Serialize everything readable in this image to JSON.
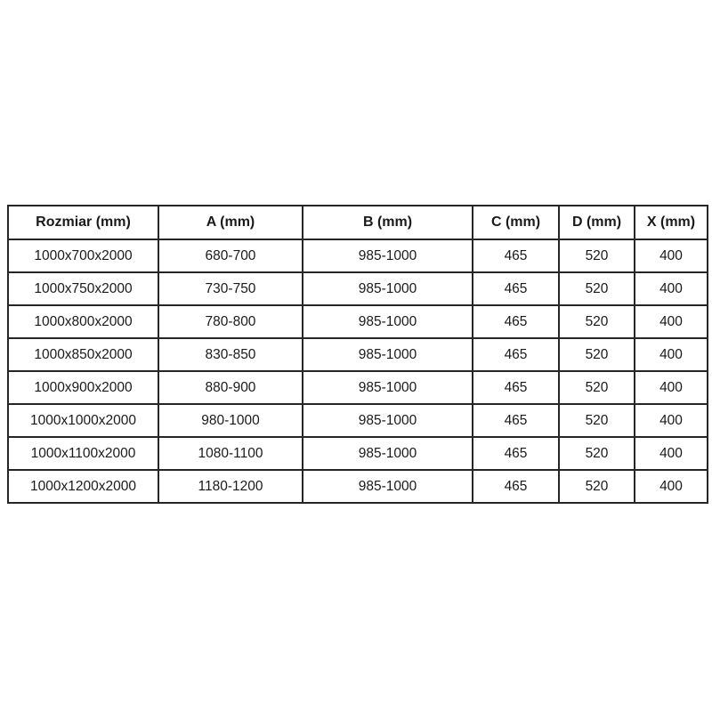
{
  "colors": {
    "background": "#ffffff",
    "border": "#262626",
    "text": "#1a1a1a"
  },
  "table": {
    "headers": [
      "Rozmiar (mm)",
      "A (mm)",
      "B (mm)",
      "C (mm)",
      "D (mm)",
      "X (mm)"
    ],
    "rows": [
      [
        "1000x700x2000",
        "680-700",
        "985-1000",
        "465",
        "520",
        "400"
      ],
      [
        "1000x750x2000",
        "730-750",
        "985-1000",
        "465",
        "520",
        "400"
      ],
      [
        "1000x800x2000",
        "780-800",
        "985-1000",
        "465",
        "520",
        "400"
      ],
      [
        "1000x850x2000",
        "830-850",
        "985-1000",
        "465",
        "520",
        "400"
      ],
      [
        "1000x900x2000",
        "880-900",
        "985-1000",
        "465",
        "520",
        "400"
      ],
      [
        "1000x1000x2000",
        "980-1000",
        "985-1000",
        "465",
        "520",
        "400"
      ],
      [
        "1000x1100x2000",
        "1080-1100",
        "985-1000",
        "465",
        "520",
        "400"
      ],
      [
        "1000x1200x2000",
        "1180-1200",
        "985-1000",
        "465",
        "520",
        "400"
      ]
    ]
  }
}
